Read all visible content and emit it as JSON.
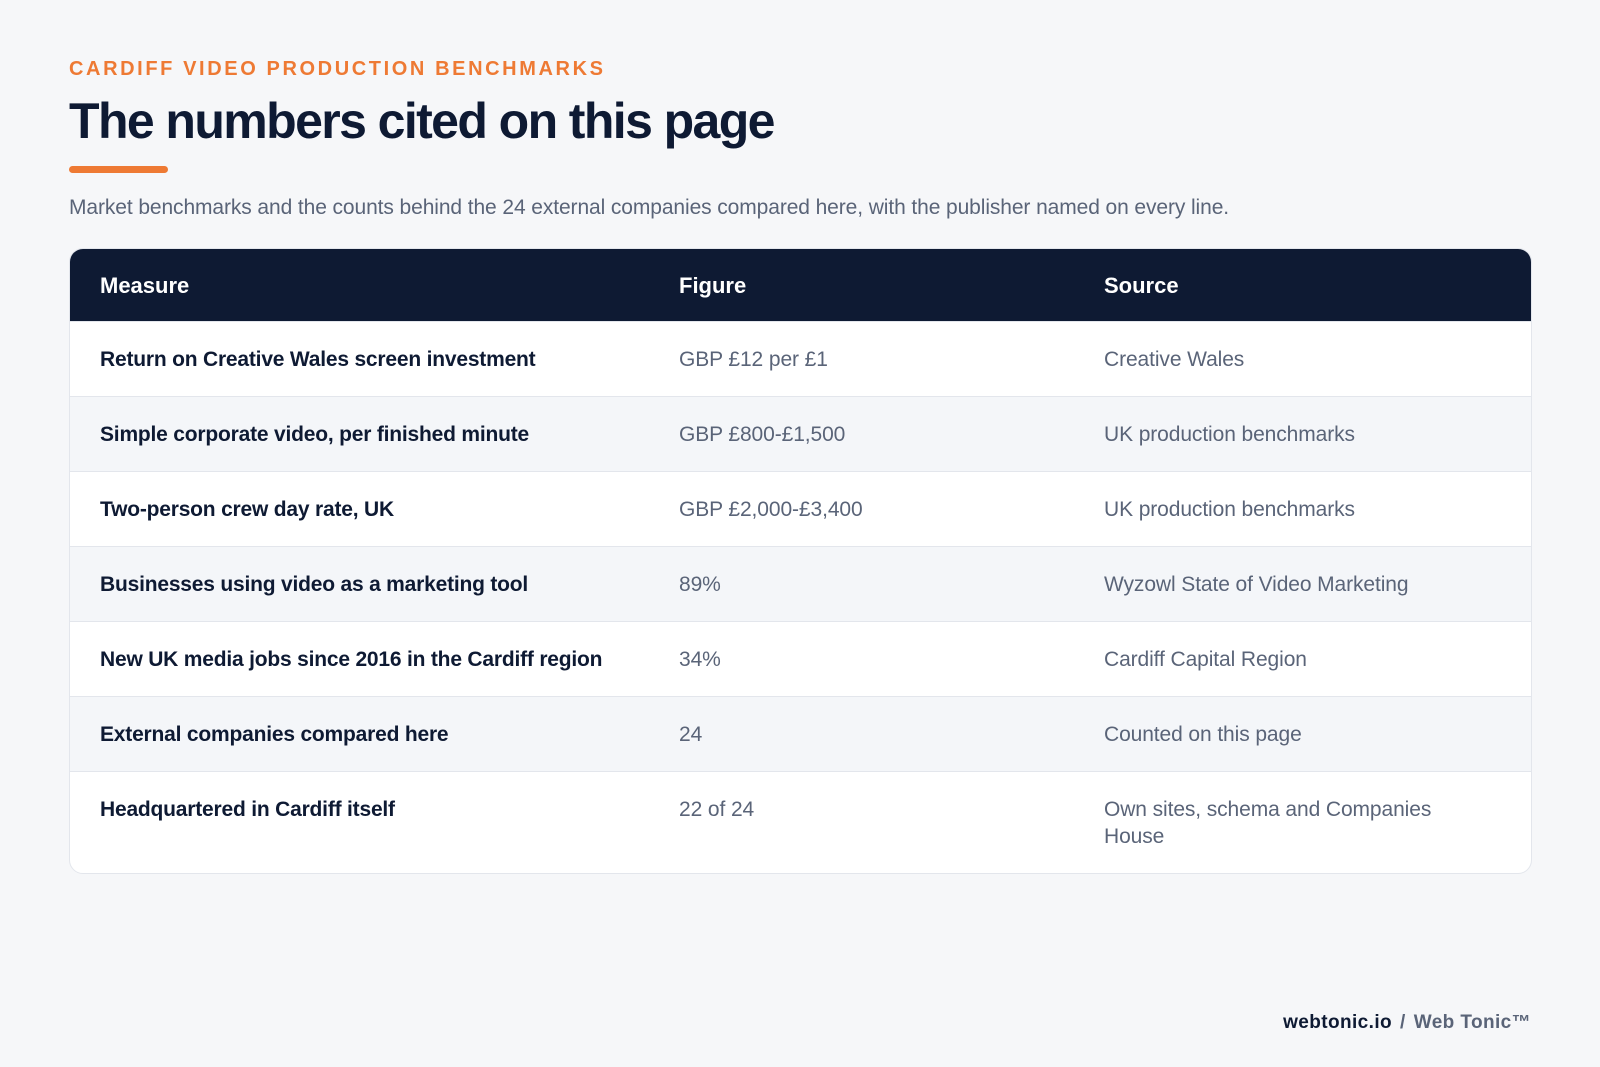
{
  "header": {
    "eyebrow": "CARDIFF VIDEO PRODUCTION BENCHMARKS",
    "title": "The numbers cited on this page",
    "subtitle": "Market benchmarks and the counts behind the 24 external companies compared here, with the publisher named on every line."
  },
  "table": {
    "columns": [
      "Measure",
      "Figure",
      "Source"
    ],
    "rows": [
      {
        "measure": "Return on Creative Wales screen investment",
        "figure": "GBP £12 per £1",
        "source": "Creative Wales"
      },
      {
        "measure": "Simple corporate video, per finished minute",
        "figure": "GBP £800-£1,500",
        "source": "UK production benchmarks"
      },
      {
        "measure": "Two-person crew day rate, UK",
        "figure": "GBP £2,000-£3,400",
        "source": "UK production benchmarks"
      },
      {
        "measure": "Businesses using video as a marketing tool",
        "figure": "89%",
        "source": "Wyzowl State of Video Marketing"
      },
      {
        "measure": "New UK media jobs since 2016 in the Cardiff region",
        "figure": "34%",
        "source": "Cardiff Capital Region"
      },
      {
        "measure": "External companies compared here",
        "figure": "24",
        "source": "Counted on this page"
      },
      {
        "measure": "Headquartered in Cardiff itself",
        "figure": "22 of 24",
        "source": "Own sites, schema and Companies House"
      }
    ]
  },
  "footer": {
    "domain": "webtonic.io",
    "separator": "/",
    "brand": "Web Tonic™"
  },
  "colors": {
    "accent": "#ee7a34",
    "navy": "#0e1a33",
    "muted": "#5a6478",
    "background": "#f6f7f9"
  }
}
